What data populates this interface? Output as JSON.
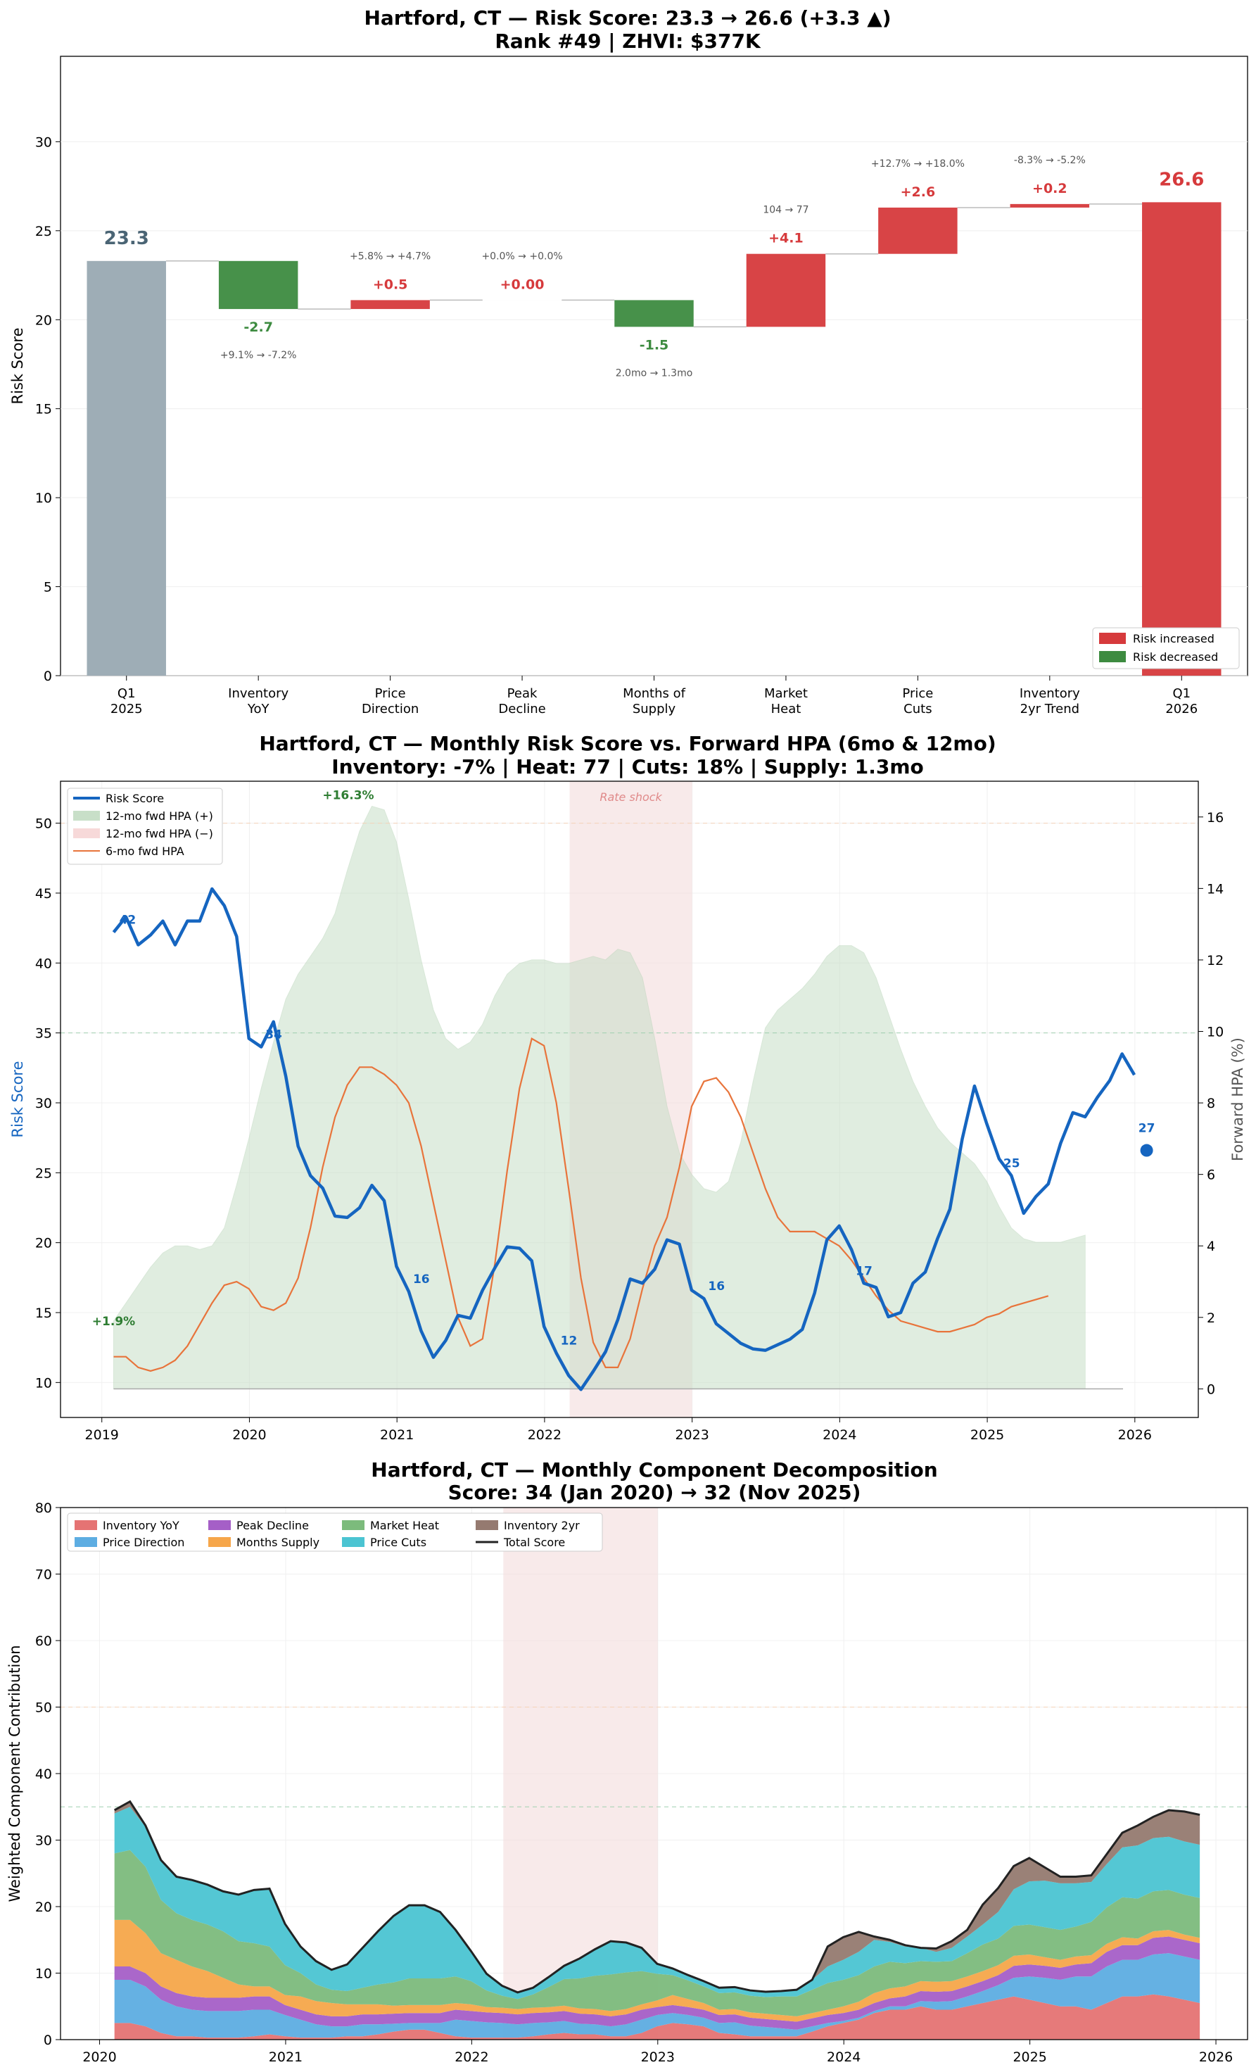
{
  "colors": {
    "start_bar": "#9eadb6",
    "increase": "#d63a3c",
    "decrease": "#3d8b40",
    "risk_line": "#1565c0",
    "hpa_pos": "#c8dfc8",
    "hpa_neg": "#f7d9d9",
    "hpa6": "#e8743b",
    "shock": "#f3dcdc",
    "total_line": "#222222"
  },
  "chart_data": [
    {
      "type": "bar",
      "subtype": "waterfall",
      "title_line1": "Hartford, CT — Risk Score: 23.3 → 26.6 (+3.3 ▲)",
      "title_line2": "Rank #49  |  ZHVI: $377K",
      "ylabel": "Risk Score",
      "ylim": [
        0,
        34.8
      ],
      "yticks": [
        "0",
        "5",
        "10",
        "15",
        "20",
        "25",
        "30"
      ],
      "categories": [
        "Q1\n2025",
        "Inventory\nYoY",
        "Price\nDirection",
        "Peak\nDecline",
        "Months of\nSupply",
        "Market\nHeat",
        "Price\nCuts",
        "Inventory\n2yr Trend",
        "Q1\n2026"
      ],
      "steps": [
        {
          "kind": "total",
          "value": 23.3,
          "label": "23.3"
        },
        {
          "kind": "delta",
          "value": -2.7,
          "label": "-2.7",
          "detail": "+9.1% → -7.2%"
        },
        {
          "kind": "delta",
          "value": 0.5,
          "label": "+0.5",
          "detail": "+5.8% → +4.7%"
        },
        {
          "kind": "delta",
          "value": 0.0,
          "label": "+0.00",
          "detail": "+0.0% → +0.0%"
        },
        {
          "kind": "delta",
          "value": -1.5,
          "label": "-1.5",
          "detail": "2.0mo → 1.3mo"
        },
        {
          "kind": "delta",
          "value": 4.1,
          "label": "+4.1",
          "detail": "104 → 77"
        },
        {
          "kind": "delta",
          "value": 2.6,
          "label": "+2.6",
          "detail": "+12.7% → +18.0%"
        },
        {
          "kind": "delta",
          "value": 0.2,
          "label": "+0.2",
          "detail": "-8.3% → -5.2%"
        },
        {
          "kind": "total",
          "value": 26.6,
          "label": "26.6"
        }
      ],
      "legend": [
        "Risk increased",
        "Risk decreased"
      ],
      "legend_position": "lower-right"
    },
    {
      "type": "line",
      "title_line1": "Hartford, CT — Monthly Risk Score vs. Forward HPA (6mo & 12mo)",
      "title_line2": "Inventory: -7%  |  Heat: 77  |  Cuts: 18%  |  Supply: 1.3mo",
      "ylabel_left": "Risk Score",
      "ylabel_right": "Forward HPA (%)",
      "xlim": [
        2018.72,
        2026.43
      ],
      "ylim_left": [
        7.5,
        53.0
      ],
      "ylim_right": [
        -0.8,
        17.0
      ],
      "xticks": [
        "2019",
        "2020",
        "2021",
        "2022",
        "2023",
        "2024",
        "2025",
        "2026"
      ],
      "yticks_left": [
        "10",
        "15",
        "20",
        "25",
        "30",
        "35",
        "40",
        "45",
        "50"
      ],
      "yticks_right": [
        "0",
        "2",
        "4",
        "6",
        "8",
        "10",
        "12",
        "14",
        "16"
      ],
      "risk_start": 2019.08,
      "risk_step_months": 1,
      "risk_score": [
        42.2,
        43.3,
        41.3,
        42.0,
        43.0,
        41.3,
        43.0,
        43.0,
        45.3,
        44.1,
        41.9,
        34.6,
        34.0,
        35.8,
        31.9,
        26.9,
        24.8,
        23.9,
        21.9,
        21.8,
        22.5,
        24.1,
        23.0,
        18.3,
        16.5,
        13.7,
        11.8,
        13.0,
        14.8,
        14.6,
        16.6,
        18.2,
        19.7,
        19.6,
        18.7,
        14.0,
        12.1,
        10.5,
        9.5,
        10.8,
        12.2,
        14.5,
        17.4,
        17.1,
        18.1,
        20.2,
        19.9,
        16.6,
        16.0,
        14.2,
        13.5,
        12.8,
        12.4,
        12.3,
        12.7,
        13.1,
        13.8,
        16.4,
        20.2,
        21.2,
        19.5,
        17.1,
        16.8,
        14.7,
        15.0,
        17.1,
        17.9,
        20.3,
        22.4,
        27.4,
        31.2,
        28.5,
        26.0,
        24.8,
        22.1,
        23.3,
        24.2,
        27.1,
        29.3,
        29.0,
        30.4,
        31.6,
        33.5,
        32.0
      ],
      "point_labels": [
        {
          "x": 2019.09,
          "y": 42.2,
          "text": "42"
        },
        {
          "x": 2020.08,
          "y": 34.0,
          "text": "34"
        },
        {
          "x": 2021.08,
          "y": 16.5,
          "text": "16"
        },
        {
          "x": 2022.08,
          "y": 12.1,
          "text": "12"
        },
        {
          "x": 2023.08,
          "y": 16.0,
          "text": "16"
        },
        {
          "x": 2024.08,
          "y": 17.1,
          "text": "17"
        },
        {
          "x": 2025.08,
          "y": 24.8,
          "text": "25"
        }
      ],
      "current_marker": {
        "x": 2026.08,
        "y": 26.6,
        "text": "27"
      },
      "hpa12_start": 2019.08,
      "hpa12": [
        1.9,
        2.4,
        2.9,
        3.4,
        3.8,
        4.0,
        4.0,
        3.9,
        4.0,
        4.5,
        5.7,
        7.0,
        8.4,
        9.7,
        10.9,
        11.6,
        12.1,
        12.6,
        13.3,
        14.5,
        15.6,
        16.3,
        16.2,
        15.3,
        13.7,
        12.0,
        10.6,
        9.8,
        9.5,
        9.7,
        10.2,
        11.0,
        11.6,
        11.9,
        12.0,
        12.0,
        11.9,
        11.9,
        12.0,
        12.1,
        12.0,
        12.3,
        12.2,
        11.5,
        9.8,
        7.9,
        6.6,
        6.0,
        5.6,
        5.5,
        5.8,
        6.9,
        8.6,
        10.1,
        10.6,
        10.9,
        11.2,
        11.6,
        12.1,
        12.4,
        12.4,
        12.2,
        11.5,
        10.5,
        9.5,
        8.6,
        7.9,
        7.3,
        6.9,
        6.6,
        6.3,
        5.8,
        5.1,
        4.5,
        4.2,
        4.1,
        4.1,
        4.1,
        4.2,
        4.3
      ],
      "hpa6_start": 2019.08,
      "hpa6": [
        0.9,
        0.9,
        0.6,
        0.5,
        0.6,
        0.8,
        1.2,
        1.8,
        2.4,
        2.9,
        3.0,
        2.8,
        2.3,
        2.2,
        2.4,
        3.1,
        4.5,
        6.2,
        7.6,
        8.5,
        9.0,
        9.0,
        8.8,
        8.5,
        8.0,
        6.8,
        5.2,
        3.6,
        2.0,
        1.2,
        1.4,
        3.5,
        6.1,
        8.4,
        9.8,
        9.6,
        8.0,
        5.6,
        3.1,
        1.3,
        0.6,
        0.6,
        1.4,
        2.8,
        4.0,
        4.8,
        6.2,
        7.9,
        8.6,
        8.7,
        8.3,
        7.6,
        6.6,
        5.6,
        4.8,
        4.4,
        4.4,
        4.4,
        4.2,
        4.0,
        3.6,
        3.1,
        2.6,
        2.2,
        1.9,
        1.8,
        1.7,
        1.6,
        1.6,
        1.7,
        1.8,
        2.0,
        2.1,
        2.3,
        2.4,
        2.5,
        2.6
      ],
      "shock_range": [
        2022.17,
        2023.0
      ],
      "shock_label": "Rate shock",
      "ref_lines": [
        35,
        50
      ],
      "peak_label": {
        "x": 2020.67,
        "y": 16.3,
        "text": "+16.3%"
      },
      "start_label": {
        "x": 2019.08,
        "y": 1.9,
        "text": "+1.9%"
      },
      "legend": [
        "Risk Score",
        "12-mo fwd HPA (+)",
        "12-mo fwd HPA (−)",
        "6-mo fwd HPA"
      ],
      "legend_position": "upper-left"
    },
    {
      "type": "area",
      "title_line1": "Hartford, CT — Monthly Component Decomposition",
      "title_line2": "Score: 34 (Jan 2020) → 32 (Nov 2025)",
      "ylabel": "Weighted Component Contribution",
      "xlim": [
        2019.79,
        2026.17
      ],
      "ylim": [
        0,
        80
      ],
      "xticks": [
        "2020",
        "2021",
        "2022",
        "2023",
        "2024",
        "2025",
        "2026"
      ],
      "yticks": [
        "0",
        "10",
        "20",
        "30",
        "40",
        "50",
        "60",
        "70",
        "80"
      ],
      "x_start": 2020.08,
      "step_months": 1,
      "shock_range": [
        2022.17,
        2023.0
      ],
      "ref_lines": [
        35,
        50
      ],
      "series": [
        {
          "name": "Inventory YoY",
          "color": "#e57373",
          "values": [
            2.5,
            2.5,
            2.0,
            1.0,
            0.5,
            0.5,
            0.3,
            0.3,
            0.3,
            0.5,
            0.8,
            0.5,
            0.3,
            0.3,
            0.3,
            0.5,
            0.5,
            0.8,
            1.2,
            1.5,
            1.5,
            1.0,
            0.5,
            0.3,
            0.3,
            0.3,
            0.3,
            0.5,
            0.8,
            1.0,
            0.8,
            0.8,
            0.5,
            0.5,
            1.0,
            2.0,
            2.5,
            2.3,
            2.0,
            1.0,
            0.8,
            0.5,
            0.5,
            0.5,
            0.5,
            1.2,
            2.0,
            2.5,
            3.0,
            4.0,
            4.5,
            4.5,
            5.0,
            4.5,
            4.5,
            5.0,
            5.5,
            6.0,
            6.5,
            6.0,
            5.5,
            5.0,
            5.0,
            4.5,
            5.5,
            6.5,
            6.5,
            6.8,
            6.5,
            6.0,
            5.5
          ]
        },
        {
          "name": "Price Direction",
          "color": "#5dade2",
          "values": [
            6.5,
            6.5,
            6.0,
            5.0,
            4.5,
            4.0,
            4.0,
            4.0,
            4.0,
            4.0,
            3.7,
            3.2,
            2.7,
            2.0,
            1.7,
            1.5,
            1.8,
            1.5,
            1.2,
            1.0,
            1.0,
            1.5,
            2.5,
            2.5,
            2.3,
            2.2,
            2.0,
            2.0,
            1.8,
            1.8,
            1.6,
            1.5,
            1.5,
            1.8,
            2.0,
            1.7,
            1.5,
            1.4,
            1.3,
            1.5,
            1.8,
            1.6,
            1.4,
            1.2,
            1.0,
            0.8,
            0.5,
            0.3,
            0.3,
            0.3,
            0.5,
            0.5,
            0.8,
            1.2,
            1.3,
            1.5,
            1.8,
            2.2,
            2.8,
            3.5,
            3.8,
            4.0,
            4.5,
            5.0,
            5.5,
            5.5,
            5.5,
            6.0,
            6.5,
            6.5,
            6.5
          ]
        },
        {
          "name": "Peak Decline",
          "color": "#a55fc7",
          "values": [
            2.0,
            2.0,
            2.0,
            2.0,
            2.0,
            2.0,
            2.0,
            2.0,
            2.0,
            2.0,
            2.0,
            1.5,
            1.5,
            1.5,
            1.5,
            1.5,
            1.5,
            1.5,
            1.5,
            1.5,
            1.5,
            1.5,
            1.5,
            1.5,
            1.5,
            1.5,
            1.5,
            1.5,
            1.5,
            1.5,
            1.5,
            1.5,
            1.5,
            1.5,
            1.5,
            1.2,
            1.2,
            1.2,
            1.2,
            1.2,
            1.2,
            1.2,
            1.2,
            1.2,
            1.2,
            1.2,
            1.2,
            1.2,
            1.2,
            1.2,
            1.2,
            1.5,
            1.5,
            1.5,
            1.5,
            1.5,
            1.5,
            1.5,
            1.8,
            1.8,
            1.8,
            1.8,
            1.8,
            2.0,
            2.2,
            2.2,
            2.2,
            2.5,
            2.5,
            2.5,
            2.5
          ]
        },
        {
          "name": "Months Supply",
          "color": "#f6a64a",
          "values": [
            7.0,
            7.0,
            6.0,
            5.0,
            5.0,
            4.5,
            4.0,
            3.0,
            2.0,
            1.5,
            1.5,
            1.5,
            2.0,
            2.0,
            2.0,
            1.8,
            1.5,
            1.5,
            1.2,
            1.2,
            1.2,
            1.2,
            1.0,
            1.0,
            0.8,
            0.8,
            0.8,
            0.8,
            0.8,
            0.8,
            0.8,
            0.8,
            0.8,
            0.8,
            0.8,
            1.0,
            1.5,
            1.2,
            1.0,
            0.8,
            0.8,
            0.8,
            0.8,
            0.8,
            0.8,
            0.8,
            0.8,
            1.0,
            1.2,
            1.5,
            1.5,
            1.5,
            1.5,
            1.5,
            1.5,
            1.5,
            1.5,
            1.5,
            1.5,
            1.5,
            1.3,
            1.2,
            1.2,
            1.2,
            1.2,
            1.2,
            1.0,
            1.0,
            1.0,
            0.8,
            0.8
          ]
        },
        {
          "name": "Market Heat",
          "color": "#7cbb7c",
          "values": [
            10.0,
            10.5,
            10.0,
            8.0,
            7.0,
            7.0,
            7.0,
            7.0,
            6.5,
            6.5,
            6.0,
            4.5,
            3.5,
            2.5,
            2.0,
            2.0,
            2.5,
            3.0,
            3.5,
            4.0,
            4.0,
            4.0,
            4.0,
            3.5,
            2.5,
            1.8,
            1.5,
            2.0,
            3.0,
            4.0,
            4.5,
            5.0,
            5.5,
            5.5,
            5.0,
            4.0,
            3.0,
            2.8,
            2.5,
            2.5,
            2.5,
            2.5,
            2.5,
            2.8,
            3.0,
            3.5,
            4.0,
            4.0,
            4.0,
            4.0,
            4.0,
            3.5,
            3.0,
            3.0,
            3.0,
            3.5,
            4.0,
            4.0,
            4.5,
            4.5,
            4.5,
            4.5,
            4.5,
            5.0,
            5.5,
            6.0,
            6.0,
            6.0,
            6.0,
            6.0,
            6.0
          ]
        },
        {
          "name": "Price Cuts",
          "color": "#4bc4d2",
          "values": [
            6.0,
            6.5,
            6.0,
            6.0,
            5.5,
            6.0,
            6.0,
            6.0,
            7.0,
            8.0,
            8.5,
            6.0,
            4.0,
            3.5,
            3.0,
            4.0,
            6.0,
            8.0,
            10.0,
            11.0,
            11.0,
            10.0,
            7.0,
            4.5,
            2.5,
            1.5,
            1.0,
            1.0,
            1.5,
            2.0,
            3.0,
            4.0,
            5.0,
            4.5,
            3.5,
            1.5,
            1.0,
            0.8,
            0.8,
            0.8,
            0.8,
            0.8,
            0.8,
            0.8,
            1.0,
            1.5,
            2.5,
            3.0,
            3.5,
            4.0,
            3.0,
            2.5,
            2.0,
            1.5,
            2.0,
            2.5,
            3.0,
            4.0,
            5.5,
            6.5,
            7.0,
            7.0,
            6.5,
            6.0,
            6.5,
            7.5,
            8.0,
            8.0,
            8.0,
            8.0,
            8.0
          ]
        },
        {
          "name": "Inventory 2yr",
          "color": "#957a70",
          "values": [
            0.5,
            0.8,
            0.2,
            0.0,
            0.0,
            0.0,
            0.0,
            0.0,
            0.0,
            0.0,
            0.2,
            0.2,
            0.0,
            0.0,
            0.0,
            0.0,
            0.0,
            0.0,
            0.0,
            0.0,
            0.0,
            0.0,
            0.0,
            0.0,
            0.0,
            0.0,
            0.0,
            0.0,
            0.0,
            0.0,
            0.0,
            0.0,
            0.0,
            0.0,
            0.0,
            0.0,
            0.0,
            0.0,
            0.0,
            0.0,
            0.0,
            0.0,
            0.0,
            0.0,
            0.0,
            0.0,
            3.0,
            3.4,
            3.0,
            0.5,
            0.3,
            0.2,
            0.0,
            0.5,
            1.0,
            1.0,
            3.0,
            3.6,
            3.5,
            3.5,
            2.0,
            1.0,
            1.0,
            1.0,
            1.5,
            2.2,
            3.0,
            3.2,
            4.0,
            4.5,
            4.5
          ]
        }
      ],
      "total_name": "Total Score",
      "legend_position": "upper-left"
    }
  ]
}
